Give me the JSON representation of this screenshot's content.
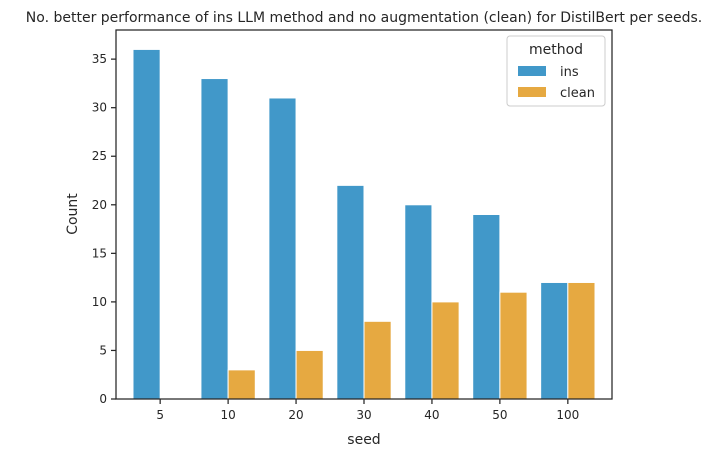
{
  "chart_data": {
    "type": "bar",
    "title": "No. better performance of ins LLM method and no augmentation (clean) for DistilBert per seeds.",
    "xlabel": "seed",
    "ylabel": "Count",
    "categories": [
      "5",
      "10",
      "20",
      "30",
      "40",
      "50",
      "100"
    ],
    "series": [
      {
        "name": "ins",
        "values": [
          36,
          33,
          31,
          22,
          20,
          19,
          12
        ],
        "color": "#4198c9"
      },
      {
        "name": "clean",
        "values": [
          0,
          3,
          5,
          8,
          10,
          11,
          12
        ],
        "color": "#e6a941"
      }
    ],
    "ylim": [
      0,
      38
    ],
    "yticks": [
      0,
      5,
      10,
      15,
      20,
      25,
      30,
      35
    ],
    "grid": false,
    "legend": {
      "title": "method",
      "placement": "top-right"
    }
  }
}
